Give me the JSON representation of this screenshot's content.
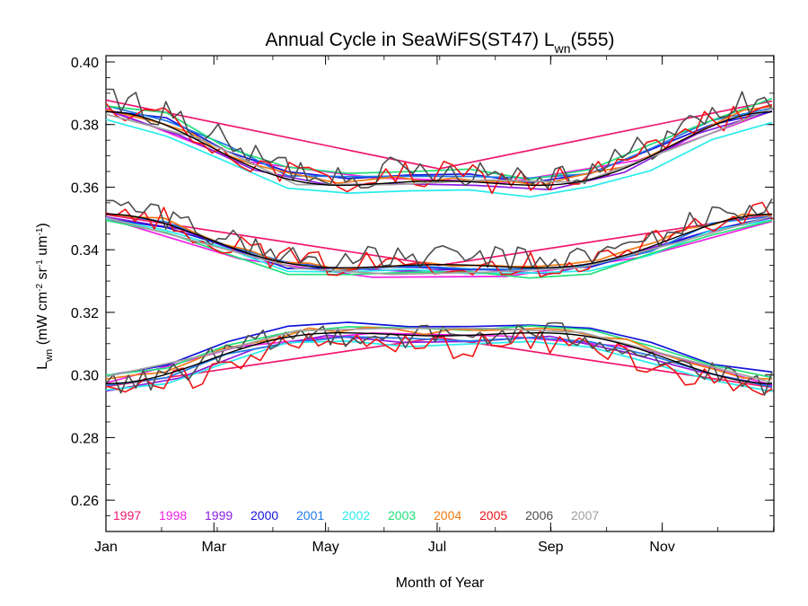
{
  "chart_data": {
    "type": "line",
    "title": {
      "prefix": "Annual Cycle in SeaWiFS(ST47) L",
      "sub": "wn",
      "suffix": "(555)"
    },
    "xlabel": "Month of Year",
    "ylabel": {
      "l": "L",
      "wn": "wn",
      "unit_a": " (mW cm",
      "e1": "-2",
      "unit_b": " sr",
      "e2": "-1",
      "unit_c": " um",
      "e3": "-1",
      "close": ")"
    },
    "xlim": [
      1,
      366
    ],
    "ylim": [
      0.25,
      0.402
    ],
    "x_ticks": [
      {
        "label": "Jan",
        "day": 1
      },
      {
        "label": "Mar",
        "day": 60
      },
      {
        "label": "May",
        "day": 121
      },
      {
        "label": "Jul",
        "day": 182
      },
      {
        "label": "Sep",
        "day": 244
      },
      {
        "label": "Nov",
        "day": 305
      }
    ],
    "y_ticks": [
      "0.26",
      "0.28",
      "0.30",
      "0.32",
      "0.34",
      "0.36",
      "0.38",
      "0.40"
    ],
    "minor_y_step": 0.005,
    "minor_x_days": 30.4,
    "bands": [
      {
        "name": "upper",
        "base": 0.3685,
        "amp": 0.013,
        "phase": 0,
        "noise": 0.0038
      },
      {
        "name": "middle",
        "base": 0.34,
        "amp": 0.0095,
        "phase": 0,
        "noise": 0.0032
      },
      {
        "name": "lower",
        "base": 0.308,
        "amp": -0.009,
        "phase": 0,
        "noise": 0.0032
      }
    ],
    "series": [
      {
        "name": "1997",
        "color": "#f0186e",
        "style": "smooth",
        "points": 3
      },
      {
        "name": "1998",
        "color": "#f01ee6",
        "style": "smooth",
        "points": 6
      },
      {
        "name": "1999",
        "color": "#8a1de0",
        "style": "smooth",
        "points": 10
      },
      {
        "name": "2000",
        "color": "#1414dc",
        "style": "smooth",
        "points": 12
      },
      {
        "name": "2001",
        "color": "#1e78e6",
        "style": "smooth",
        "points": 12
      },
      {
        "name": "2002",
        "color": "#28ecec",
        "style": "smooth",
        "points": 12
      },
      {
        "name": "2003",
        "color": "#22e07a",
        "style": "smooth",
        "points": 12
      },
      {
        "name": "2004",
        "color": "#f07a14",
        "style": "smooth",
        "points": 24
      },
      {
        "name": "2005",
        "color": "#f01414",
        "style": "noisy",
        "points": 70
      },
      {
        "name": "2006",
        "color": "#4d4d4d",
        "style": "noisy",
        "points": 90
      },
      {
        "name": "2007",
        "color": "#a0a0a0",
        "style": "smooth",
        "points": 8
      }
    ],
    "climatology": {
      "color": "#000000"
    },
    "legend": "bottom-left"
  }
}
